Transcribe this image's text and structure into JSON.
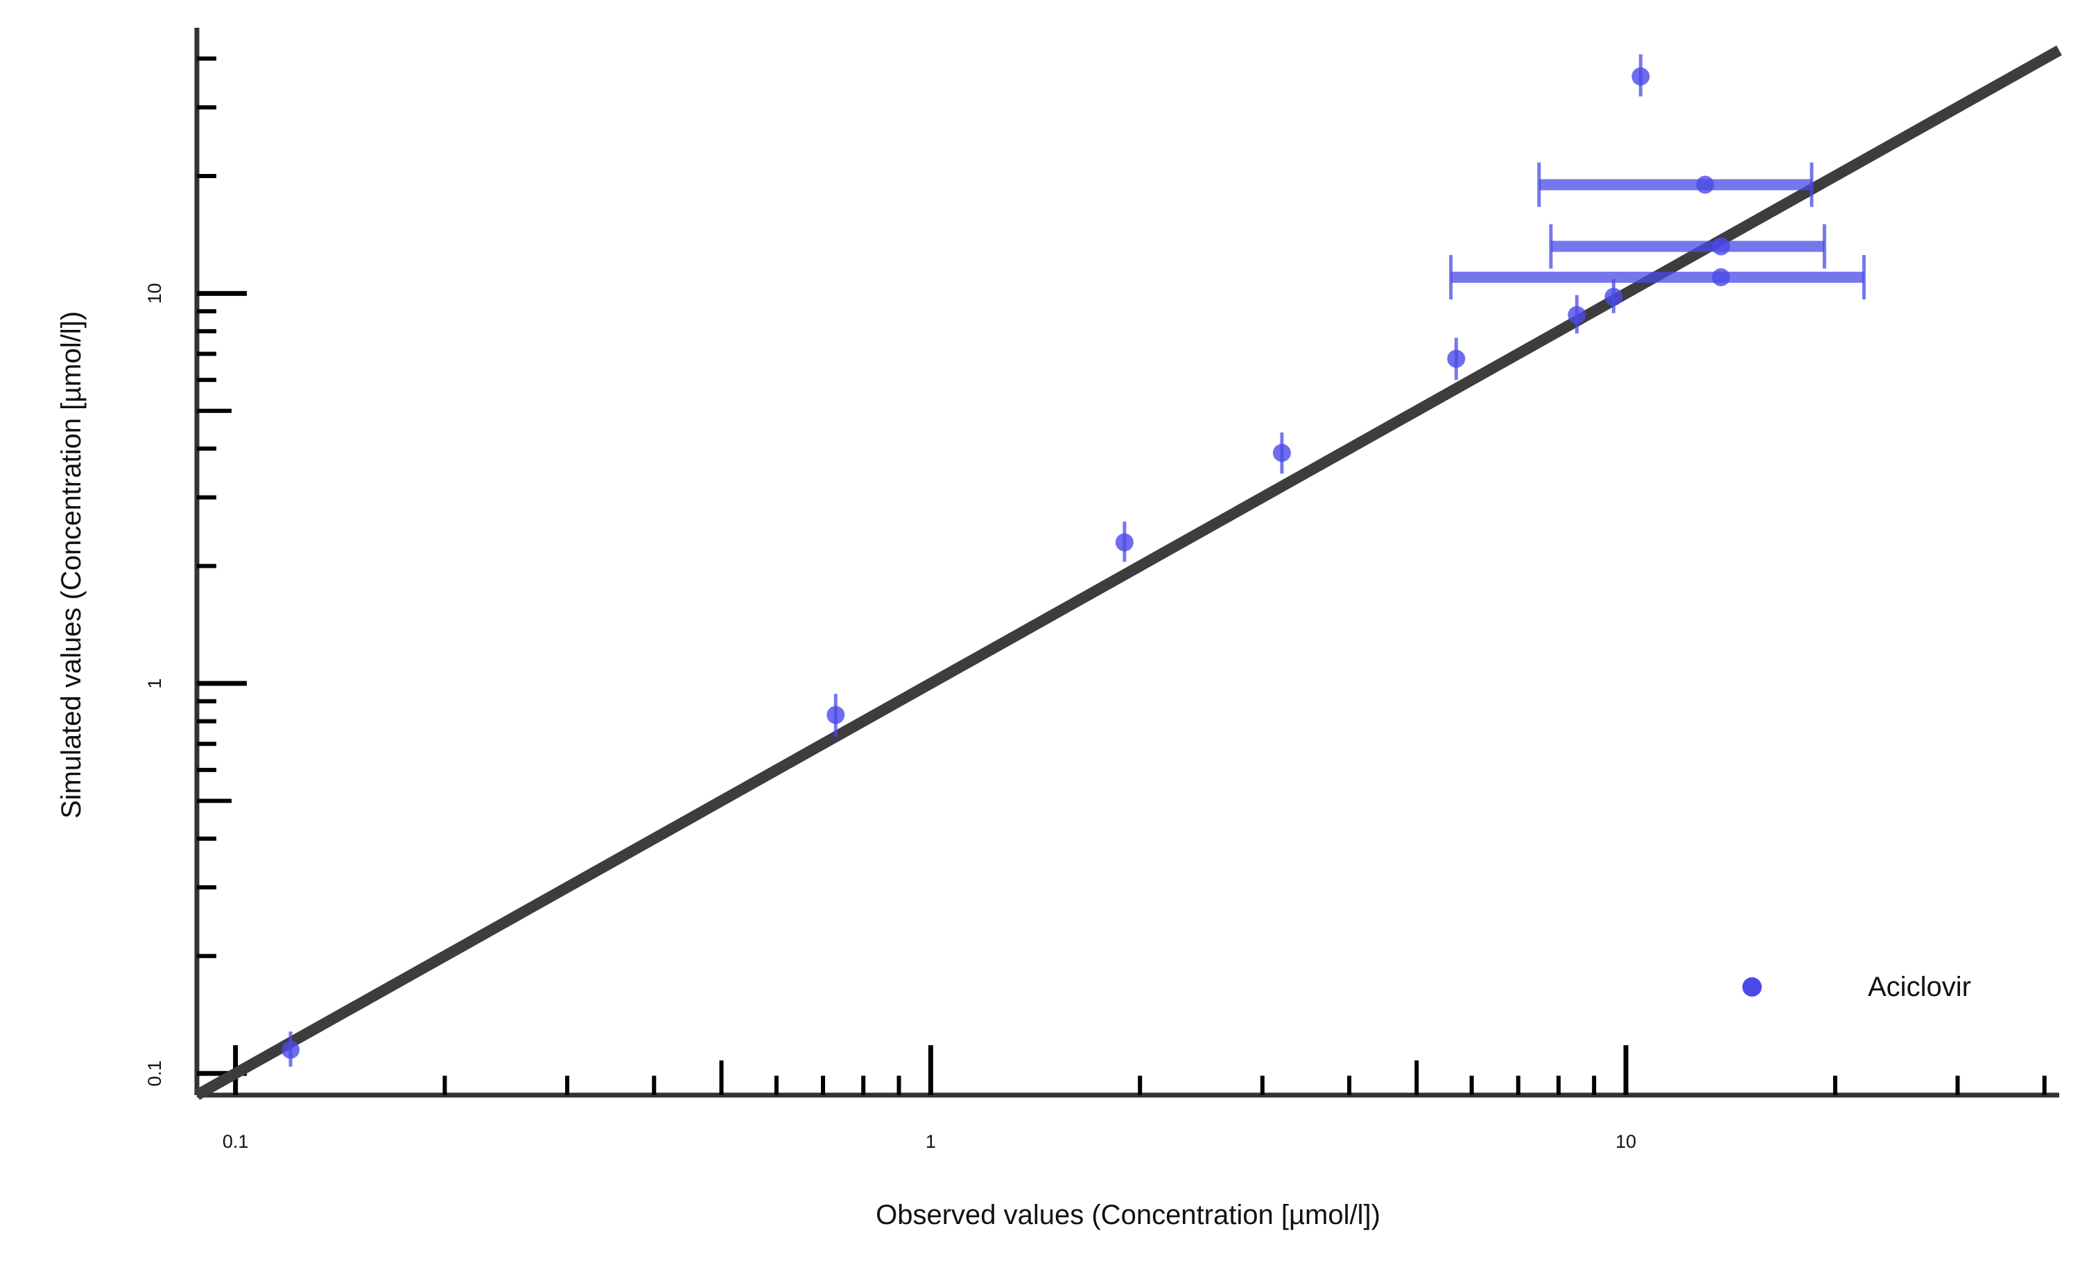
{
  "chart_data": {
    "type": "scatter",
    "title": "",
    "xlabel": "Observed values (Concentration [µmol/l])",
    "ylabel": "Simulated values (Concentration [µmol/l])",
    "x_scale": "log",
    "y_scale": "log",
    "xlim": [
      0.088,
      42
    ],
    "ylim": [
      0.088,
      48
    ],
    "x_ticks": [
      {
        "value": 0.1,
        "label": "0.1"
      },
      {
        "value": 1,
        "label": "1"
      },
      {
        "value": 10,
        "label": "10"
      }
    ],
    "y_ticks": [
      {
        "value": 0.1,
        "label": "0.1"
      },
      {
        "value": 1,
        "label": "1"
      },
      {
        "value": 10,
        "label": "10"
      }
    ],
    "identity_line": true,
    "identity_line_color": "#3d3d3d",
    "grid": false,
    "legend_position": "bottom-right",
    "series": [
      {
        "name": "Aciclovir",
        "color": "#4a4ae8",
        "points": [
          {
            "x": 0.12,
            "y": 0.115,
            "x_low": 0.12,
            "x_high": 0.12,
            "y_low": 0.104,
            "y_high": 0.128
          },
          {
            "x": 0.73,
            "y": 0.83,
            "x_low": 0.73,
            "x_high": 0.73,
            "y_low": 0.73,
            "y_high": 0.94
          },
          {
            "x": 1.9,
            "y": 2.3,
            "x_low": 1.9,
            "x_high": 1.9,
            "y_low": 2.05,
            "y_high": 2.6
          },
          {
            "x": 3.2,
            "y": 3.9,
            "x_low": 3.2,
            "x_high": 3.2,
            "y_low": 3.45,
            "y_high": 4.4
          },
          {
            "x": 5.7,
            "y": 6.8,
            "x_low": 5.7,
            "x_high": 5.7,
            "y_low": 6.0,
            "y_high": 7.7
          },
          {
            "x": 8.5,
            "y": 8.8,
            "x_low": 8.5,
            "x_high": 8.5,
            "y_low": 7.9,
            "y_high": 9.9
          },
          {
            "x": 9.6,
            "y": 9.8,
            "x_low": 9.6,
            "x_high": 9.6,
            "y_low": 8.9,
            "y_high": 10.9
          },
          {
            "x": 10.5,
            "y": 36,
            "x_low": 10.5,
            "x_high": 10.5,
            "y_low": 32,
            "y_high": 41
          },
          {
            "x": 13.0,
            "y": 19.0,
            "x_low": 7.5,
            "x_high": 18.5,
            "y_low": 19.0,
            "y_high": 19.0
          },
          {
            "x": 13.7,
            "y": 13.2,
            "x_low": 7.8,
            "x_high": 19.3,
            "y_low": 13.2,
            "y_high": 13.2
          },
          {
            "x": 13.7,
            "y": 11.0,
            "x_low": 5.6,
            "x_high": 22.0,
            "y_low": 11.0,
            "y_high": 11.0
          }
        ]
      }
    ]
  }
}
